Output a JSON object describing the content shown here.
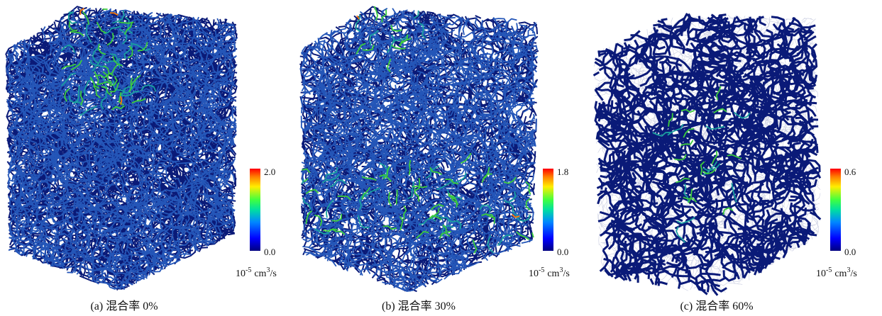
{
  "panels": [
    {
      "caption": "(a) 混合率 0%",
      "colorbar": {
        "max": "2.0",
        "min": "0.0"
      }
    },
    {
      "caption": "(b) 混合率 30%",
      "colorbar": {
        "max": "1.8",
        "min": "0.0"
      }
    },
    {
      "caption": "(c) 混合率 60%",
      "colorbar": {
        "max": "0.6",
        "min": "0.0"
      }
    }
  ],
  "unit": {
    "base": "10",
    "exponent": "-5",
    "measure": "cm",
    "power": "3",
    "per": "/s"
  }
}
